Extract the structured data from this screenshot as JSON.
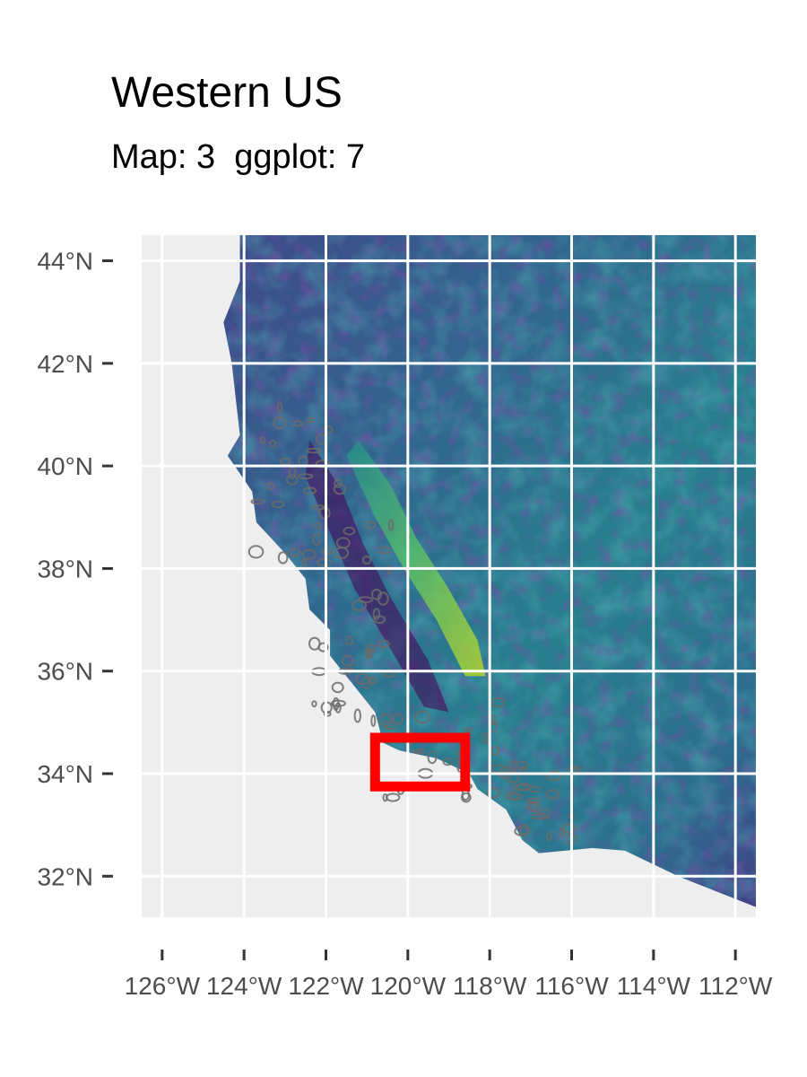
{
  "title": "Western US",
  "subtitle": "Map: 3  ggplot: 7",
  "map_data": {
    "type": "raster-map",
    "projection": "geographic",
    "lon_range": [
      -126.5,
      -111.5
    ],
    "lat_range": [
      31.2,
      44.5
    ],
    "x_ticks": [
      -126,
      -124,
      -122,
      -120,
      -118,
      -116,
      -114,
      -112
    ],
    "x_tick_labels": [
      "126°W",
      "124°W",
      "122°W",
      "120°W",
      "118°W",
      "116°W",
      "114°W",
      "112°W"
    ],
    "y_ticks": [
      32,
      34,
      36,
      38,
      40,
      42,
      44
    ],
    "y_tick_labels": [
      "32°N",
      "34°N",
      "36°N",
      "38°N",
      "40°N",
      "42°N",
      "44°N"
    ],
    "grid": true,
    "colormap": "viridis",
    "background_color": "#ebebeb",
    "ocean_color": "#eeeeee",
    "contour_color": "#6b6b6b",
    "highlight_box": {
      "lon_min": -120.8,
      "lon_max": -118.6,
      "lat_min": 33.75,
      "lat_max": 34.7,
      "color": "#ff0000"
    }
  }
}
